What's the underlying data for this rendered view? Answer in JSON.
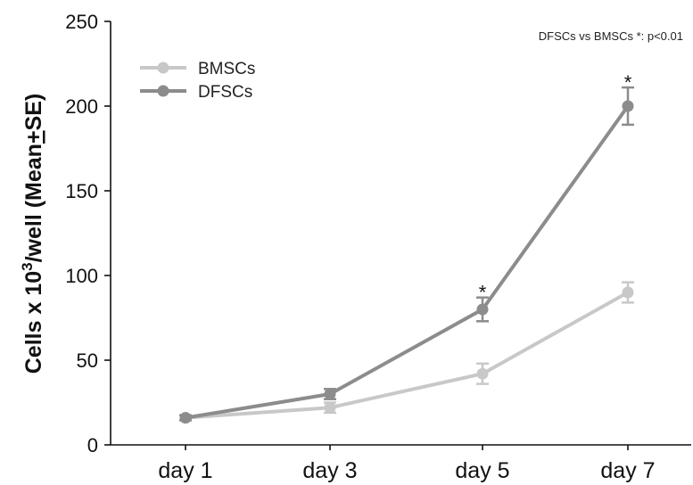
{
  "chart_data": {
    "type": "line",
    "title": "",
    "annotation": "DFSCs vs BMSCs *: p<0.01",
    "xlabel": "",
    "ylabel": {
      "prefix": "Cells x 10",
      "superscript": "3",
      "middle": "/well (Mean",
      "plus_minus": "+",
      "suffix": "SE)"
    },
    "categories": [
      "day 1",
      "day 3",
      "day 5",
      "day 7"
    ],
    "ylim": [
      0,
      250
    ],
    "yticks": [
      "0",
      "50",
      "100",
      "150",
      "200",
      "250"
    ],
    "grid": false,
    "legend_position": "top-left",
    "series": [
      {
        "name": "BMSCs",
        "color": "#c8c8c8",
        "values": [
          16,
          22,
          42,
          90
        ],
        "errors": [
          1.5,
          3,
          6,
          6
        ]
      },
      {
        "name": "DFSCs",
        "color": "#8c8c8c",
        "values": [
          16,
          30,
          80,
          200
        ],
        "errors": [
          1.5,
          3,
          7,
          11
        ]
      }
    ],
    "significance": {
      "marker": "*",
      "categories": [
        "day 5",
        "day 7"
      ]
    }
  }
}
